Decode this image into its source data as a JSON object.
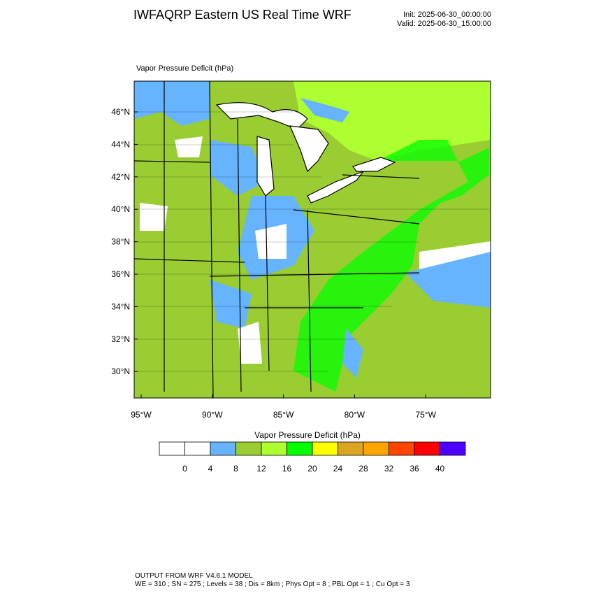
{
  "header": {
    "title": "IWFAQRP Eastern US Real Time WRF",
    "init": "Init: 2025-06-30_00:00:00",
    "valid": "Valid: 2025-06-30_15:00:00"
  },
  "map": {
    "label": "Vapor Pressure Deficit   (hPa)",
    "lat_labels": [
      "46°N",
      "44°N",
      "42°N",
      "40°N",
      "38°N",
      "36°N",
      "34°N",
      "32°N",
      "30°N"
    ],
    "lon_labels": [
      "95°W",
      "90°W",
      "85°W",
      "80°W",
      "75°W"
    ]
  },
  "colorbar": {
    "title": "Vapor Pressure Deficit  (hPa)",
    "colors": [
      "#ffffff",
      "#ffffff",
      "#66b3ff",
      "#9acd32",
      "#adff2f",
      "#00ff00",
      "#ffff00",
      "#daa520",
      "#ffa500",
      "#ff4500",
      "#ff0000",
      "#4b00ff"
    ],
    "labels": [
      0,
      4,
      8,
      12,
      16,
      20,
      24,
      28,
      32,
      36,
      40
    ]
  },
  "footer": {
    "line1": "OUTPUT FROM WRF V4.6.1 MODEL",
    "line2": "WE = 310 ; SN = 275 ; Levels = 38 ; Dis = 8km ; Phys Opt = 8 ; PBL Opt = 1 ; Cu Opt = 3"
  }
}
